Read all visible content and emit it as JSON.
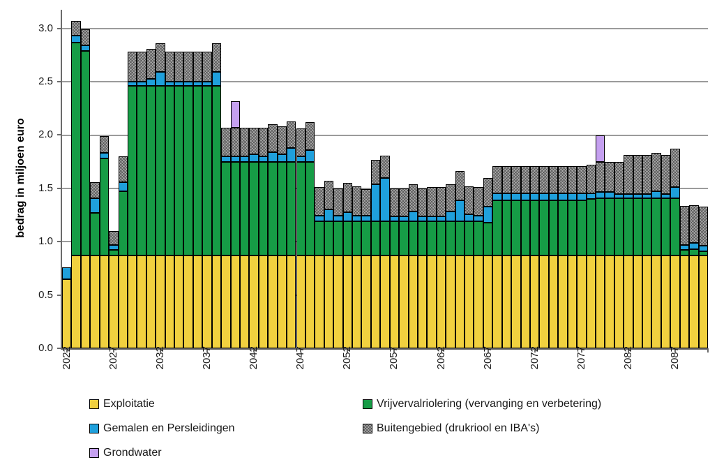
{
  "y_axis": {
    "title": "bedrag in miljoen euro",
    "tick_labels": [
      "0.0",
      "0.5",
      "1.0",
      "1.5",
      "2.0",
      "2.5",
      "3.0"
    ],
    "tick_values": [
      0.0,
      0.5,
      1.0,
      1.5,
      2.0,
      2.5,
      3.0
    ]
  },
  "x_axis": {
    "labeled_years": [
      2022,
      2027,
      2032,
      2037,
      2042,
      2047,
      2052,
      2057,
      2062,
      2067,
      2072,
      2077,
      2082,
      2087
    ]
  },
  "legend": [
    {
      "id": "exploitatie",
      "label": "Exploitatie",
      "color": "#f1d13f",
      "pattern": "solid"
    },
    {
      "id": "vrijverval",
      "label": "Vrijvervalriolering (vervanging en verbetering)",
      "color": "#169c46",
      "pattern": "solid"
    },
    {
      "id": "gemalen",
      "label": "Gemalen en Persleidingen",
      "color": "#1fa0dc",
      "pattern": "solid"
    },
    {
      "id": "buitengebied",
      "label": "Buitengebied (drukriool en IBA's)",
      "color": "#ababab",
      "pattern": "crosshatch"
    },
    {
      "id": "grondwater",
      "label": "Grondwater",
      "color": "#c5a0f0",
      "pattern": "solid"
    }
  ],
  "colors": {
    "bar_border": "#000000",
    "gridline": "#9b9b9b",
    "axis": "#6b6b6b",
    "background": "#ffffff"
  },
  "chart_data": {
    "type": "bar",
    "stacked": true,
    "title": "",
    "xlabel": "",
    "ylabel": "bedrag in miljoen euro",
    "ylim": [
      0,
      3.175
    ],
    "grid": true,
    "legend_position": "bottom",
    "x": [
      2022,
      2023,
      2024,
      2025,
      2026,
      2027,
      2028,
      2029,
      2030,
      2031,
      2032,
      2033,
      2034,
      2035,
      2036,
      2037,
      2038,
      2039,
      2040,
      2041,
      2042,
      2043,
      2044,
      2045,
      2046,
      2047,
      2048,
      2049,
      2050,
      2051,
      2052,
      2053,
      2054,
      2055,
      2056,
      2057,
      2058,
      2059,
      2060,
      2061,
      2062,
      2063,
      2064,
      2065,
      2066,
      2067,
      2068,
      2069,
      2070,
      2071,
      2072,
      2073,
      2074,
      2075,
      2076,
      2077,
      2078,
      2079,
      2080,
      2081,
      2082,
      2083,
      2084,
      2085,
      2086,
      2087,
      2088,
      2089,
      2090
    ],
    "series": [
      {
        "name": "Exploitatie",
        "key": "exploitatie",
        "values": [
          0.65,
          0.87,
          0.87,
          0.87,
          0.87,
          0.87,
          0.87,
          0.87,
          0.87,
          0.87,
          0.87,
          0.87,
          0.87,
          0.87,
          0.87,
          0.87,
          0.87,
          0.87,
          0.87,
          0.87,
          0.87,
          0.87,
          0.87,
          0.87,
          0.87,
          0.87,
          0.87,
          0.87,
          0.87,
          0.87,
          0.87,
          0.87,
          0.87,
          0.87,
          0.87,
          0.87,
          0.87,
          0.87,
          0.87,
          0.87,
          0.87,
          0.87,
          0.87,
          0.87,
          0.87,
          0.87,
          0.87,
          0.87,
          0.87,
          0.87,
          0.87,
          0.87,
          0.87,
          0.87,
          0.87,
          0.87,
          0.87,
          0.87,
          0.87,
          0.87,
          0.87,
          0.87,
          0.87,
          0.87,
          0.87,
          0.87,
          0.87,
          0.87,
          0.87
        ]
      },
      {
        "name": "Vrijvervalriolering (vervanging en verbetering)",
        "key": "vrijverval",
        "values": [
          0,
          2.0,
          1.92,
          0.4,
          0.91,
          0.05,
          0.6,
          1.59,
          1.59,
          1.59,
          1.59,
          1.59,
          1.59,
          1.59,
          1.59,
          1.59,
          1.59,
          0.88,
          0.88,
          0.88,
          0.88,
          0.88,
          0.88,
          0.88,
          0.88,
          0.88,
          0.88,
          0.32,
          0.32,
          0.32,
          0.32,
          0.32,
          0.32,
          0.32,
          0.32,
          0.32,
          0.32,
          0.32,
          0.32,
          0.32,
          0.32,
          0.32,
          0.32,
          0.32,
          0.32,
          0.31,
          0.52,
          0.52,
          0.52,
          0.52,
          0.52,
          0.52,
          0.52,
          0.52,
          0.52,
          0.52,
          0.53,
          0.54,
          0.54,
          0.54,
          0.535,
          0.535,
          0.535,
          0.535,
          0.535,
          0.54,
          0.05,
          0.06,
          0.04
        ]
      },
      {
        "name": "Gemalen en Persleidingen",
        "key": "gemalen",
        "values": [
          0.11,
          0.06,
          0.05,
          0.14,
          0.05,
          0.05,
          0.09,
          0.04,
          0.04,
          0.07,
          0.13,
          0.04,
          0.04,
          0.04,
          0.04,
          0.04,
          0.13,
          0.05,
          0.05,
          0.05,
          0.07,
          0.05,
          0.09,
          0.07,
          0.13,
          0.05,
          0.11,
          0.055,
          0.11,
          0.055,
          0.085,
          0.055,
          0.055,
          0.35,
          0.41,
          0.05,
          0.05,
          0.095,
          0.05,
          0.05,
          0.05,
          0.095,
          0.195,
          0.07,
          0.055,
          0.15,
          0.065,
          0.065,
          0.065,
          0.065,
          0.065,
          0.065,
          0.065,
          0.065,
          0.065,
          0.065,
          0.055,
          0.055,
          0.055,
          0.04,
          0.045,
          0.045,
          0.045,
          0.065,
          0.045,
          0.105,
          0.05,
          0.06,
          0.05
        ]
      },
      {
        "name": "Buitengebied (drukriool en IBA's)",
        "key": "buitengebied",
        "values": [
          0,
          0.14,
          0.15,
          0.15,
          0.16,
          0.13,
          0.24,
          0.28,
          0.28,
          0.28,
          0.27,
          0.28,
          0.28,
          0.28,
          0.28,
          0.28,
          0.27,
          0.27,
          0.27,
          0.27,
          0.25,
          0.27,
          0.26,
          0.26,
          0.25,
          0.26,
          0.26,
          0.265,
          0.27,
          0.255,
          0.275,
          0.275,
          0.245,
          0.23,
          0.21,
          0.26,
          0.26,
          0.255,
          0.26,
          0.27,
          0.27,
          0.255,
          0.275,
          0.26,
          0.265,
          0.27,
          0.255,
          0.255,
          0.255,
          0.255,
          0.255,
          0.255,
          0.255,
          0.255,
          0.255,
          0.255,
          0.265,
          0.285,
          0.28,
          0.295,
          0.365,
          0.365,
          0.365,
          0.365,
          0.365,
          0.355,
          0.365,
          0.355,
          0.37
        ]
      },
      {
        "name": "Grondwater",
        "key": "grondwater",
        "values": [
          0,
          0,
          0,
          0,
          0,
          0,
          0,
          0,
          0,
          0,
          0,
          0,
          0,
          0,
          0,
          0,
          0,
          0,
          0.25,
          0,
          0,
          0,
          0,
          0,
          0,
          0,
          0,
          0,
          0,
          0,
          0,
          0,
          0,
          0,
          0,
          0,
          0,
          0,
          0,
          0,
          0,
          0,
          0,
          0,
          0,
          0,
          0,
          0,
          0,
          0,
          0,
          0,
          0,
          0,
          0,
          0,
          0,
          0.25,
          0,
          0,
          0,
          0,
          0,
          0,
          0,
          0,
          0,
          0,
          0
        ]
      }
    ]
  }
}
